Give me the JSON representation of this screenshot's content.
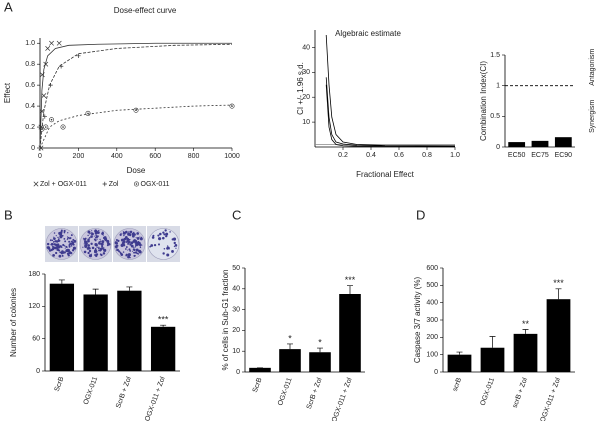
{
  "panel_labels": [
    "A",
    "B",
    "C",
    "D"
  ],
  "chart_data": [
    {
      "type": "scatter",
      "title": "Dose-effect curve",
      "xlabel": "Dose",
      "ylabel": "Effect",
      "xlim": [
        0,
        1000
      ],
      "xticks": [
        0,
        200,
        400,
        600,
        800,
        1000
      ],
      "ylim": [
        0,
        1.05
      ],
      "yticks": [
        0,
        0.2,
        0.4,
        0.6,
        0.8,
        {
          "value": 1,
          "label": "1.0"
        }
      ],
      "series": [
        {
          "name": "Zol + OGX-011",
          "marker": "x",
          "color": "#333333",
          "x": [
            5,
            5,
            10,
            12,
            20,
            30,
            40,
            60,
            100
          ],
          "values": [
            0.0,
            0.2,
            0.35,
            0.7,
            0.5,
            0.8,
            0.95,
            1.0,
            1.0
          ],
          "fit_x": [
            0,
            10,
            20,
            40,
            80,
            150,
            300,
            600,
            1000
          ],
          "fit_values": [
            0,
            0.55,
            0.75,
            0.88,
            0.95,
            0.98,
            0.99,
            1.0,
            1.0
          ]
        },
        {
          "name": "Zol",
          "marker": "+",
          "color": "#333333",
          "x": [
            25,
            55,
            110,
            200
          ],
          "values": [
            0.3,
            0.6,
            0.78,
            0.88
          ],
          "fit_x": [
            0,
            20,
            50,
            100,
            200,
            400,
            700,
            1000
          ],
          "fit_values": [
            0,
            0.35,
            0.6,
            0.78,
            0.9,
            0.95,
            0.98,
            0.99
          ]
        },
        {
          "name": "OGX-011",
          "marker": "o",
          "color": "#333333",
          "x": [
            10,
            30,
            60,
            120,
            250,
            500,
            1000
          ],
          "values": [
            0.18,
            0.2,
            0.27,
            0.2,
            0.33,
            0.36,
            0.4
          ],
          "fit_x": [
            0,
            50,
            100,
            200,
            400,
            600,
            800,
            1000
          ],
          "fit_values": [
            0,
            0.2,
            0.26,
            0.31,
            0.36,
            0.38,
            0.4,
            0.41
          ]
        }
      ]
    },
    {
      "type": "line",
      "title": "Algebraic estimate",
      "xlabel": "Fractional Effect",
      "ylabel": "CI +/- 1.96 s.d.",
      "xlim": [
        0,
        1
      ],
      "xticks": [
        0.2,
        0.4,
        0.6,
        0.8,
        {
          "value": 1,
          "label": "1.0"
        }
      ],
      "ylim": [
        0,
        47
      ],
      "yticks": [
        10,
        20,
        30,
        40
      ],
      "reference_line": 1,
      "x": [
        0.08,
        0.1,
        0.12,
        0.15,
        0.2,
        0.3,
        0.5,
        1.0
      ],
      "series": [
        {
          "color": "#000000",
          "values": [
            45,
            25,
            12,
            5,
            2,
            1,
            0.6,
            0.5
          ]
        },
        {
          "color": "#000000",
          "values": [
            28,
            12,
            5,
            2,
            1.2,
            0.6,
            0.4,
            0.3
          ]
        },
        {
          "color": "#000000",
          "values": [
            25,
            8,
            3,
            1,
            0.5,
            0.3,
            0.2,
            0.1
          ]
        }
      ]
    },
    {
      "type": "bar",
      "ylabel": "Combination Index(CI)",
      "categories": [
        "EC50",
        "EC75",
        "EC90"
      ],
      "values": [
        0.08,
        0.1,
        0.16
      ],
      "color": "#000000",
      "ylim": [
        0,
        1.5
      ],
      "yticks": [
        0,
        0.5,
        1,
        1.5
      ],
      "reference_line": 1,
      "annotations": [
        "Antagonism",
        "Synergism"
      ]
    },
    {
      "type": "bar",
      "ylabel": "Number of colonies",
      "categories": [
        "ScrB",
        "OGX-011",
        "ScrB + Zol",
        "OGX-011 + Zol"
      ],
      "values": [
        162,
        142,
        149,
        82
      ],
      "errors": [
        7,
        10,
        7,
        3
      ],
      "significance": [
        null,
        null,
        null,
        "***"
      ],
      "color": "#000000",
      "ylim": [
        0,
        180
      ],
      "yticks": [
        0,
        60,
        120,
        180
      ]
    },
    {
      "type": "bar",
      "ylabel": "% of cells in Sub-G1 fraction",
      "categories": [
        "ScrB",
        "OGX-011",
        "ScrB + Zol",
        "OGX-011 + Zol"
      ],
      "values": [
        2,
        11,
        9.5,
        37.5
      ],
      "errors": [
        0,
        2.5,
        2,
        4
      ],
      "significance": [
        null,
        "*",
        "*",
        "***"
      ],
      "color": "#000000",
      "ylim": [
        0,
        50
      ],
      "yticks": [
        0,
        10,
        20,
        30,
        40,
        50
      ]
    },
    {
      "type": "bar",
      "ylabel": "Caspase 3/7 activity (%)",
      "categories": [
        "scrB",
        "OGX-011",
        "scrB + Zol",
        "OGX-011 + Zol"
      ],
      "values": [
        100,
        140,
        220,
        420
      ],
      "errors": [
        15,
        65,
        25,
        60
      ],
      "significance": [
        null,
        null,
        "**",
        "***"
      ],
      "color": "#000000",
      "ylim": [
        0,
        600
      ],
      "yticks": [
        0,
        100,
        200,
        300,
        400,
        500,
        600
      ]
    }
  ]
}
